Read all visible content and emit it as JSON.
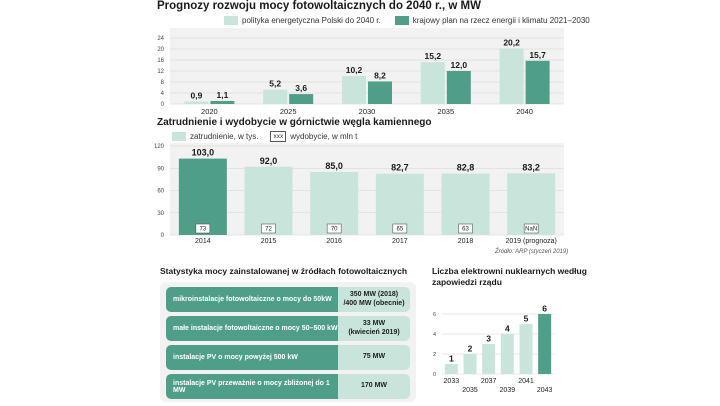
{
  "colors": {
    "light": "#c9e4da",
    "dark": "#4f9e8a",
    "panel": "#f2f2f2",
    "grid": "#d4d4d4"
  },
  "chart_data": [
    {
      "type": "bar",
      "title": "Prognozy rozwoju mocy fotowoltaicznych do 2040 r., w MW",
      "categories": [
        "2020",
        "2025",
        "2030",
        "2035",
        "2040"
      ],
      "series": [
        {
          "name": "polityka energetyczna Polski do 2040 r.",
          "values": [
            0.9,
            5.2,
            10.2,
            15.2,
            20.2
          ],
          "labels": [
            "0,9",
            "5,2",
            "10,2",
            "15,2",
            "20,2"
          ]
        },
        {
          "name": "krajowy plan na rzecz energii i klimatu 2021–2030",
          "values": [
            1.1,
            3.6,
            8.2,
            12.0,
            15.7
          ],
          "labels": [
            "1,1",
            "3,6",
            "8,2",
            "12,0",
            "15,7"
          ]
        }
      ],
      "yticks": [
        "0",
        "4",
        "8",
        "12",
        "16",
        "20",
        "24"
      ],
      "ylim": [
        0,
        24
      ],
      "grid": true
    },
    {
      "type": "bar",
      "title": "Zatrudnienie i wydobycie w górnictwie węgla kamiennego",
      "legend": {
        "employment": "zatrudnienie, w tys.",
        "box_sample": "xxx",
        "output": "wydobycie, w mln t"
      },
      "categories": [
        "2014",
        "2015",
        "2016",
        "2017",
        "2018",
        "2019 (prognoza)"
      ],
      "values": [
        103.0,
        92.0,
        85.0,
        82.7,
        82.8,
        83.2
      ],
      "value_labels": [
        "103,0",
        "92,0",
        "85,0",
        "82,7",
        "82,8",
        "83,2"
      ],
      "output_labels": [
        "73",
        "72",
        "70",
        "65",
        "63",
        "NaN"
      ],
      "yticks": [
        "0",
        "30",
        "60",
        "90",
        "120"
      ],
      "ylim": [
        0,
        120
      ],
      "highlight_index": 0,
      "source": "Źródło: ARP (styczeń 2019)"
    },
    {
      "type": "bar",
      "title": "Liczba elektrowni nuklearnych według zapowiedzi rządu",
      "categories": [
        "2033",
        "2035",
        "2037",
        "2039",
        "2041",
        "2043"
      ],
      "values": [
        1,
        2,
        3,
        4,
        5,
        6
      ],
      "yticks": [
        "0",
        "2",
        "4",
        "6"
      ],
      "ylim": [
        0,
        6
      ]
    }
  ],
  "stats_table": {
    "title": "Statystyka mocy zainstalowanej w źródłach fotowoltaicznych",
    "rows": [
      {
        "label": "mikroinstalacje fotowoltaiczne o mocy do 50kW",
        "value": "350 MW (2018)\n/400 MW (obecnie)"
      },
      {
        "label": "małe instalacje fotowoltaiczne o mocy 50–500 kW",
        "value": "33 MW\n(kwiecień 2019)"
      },
      {
        "label": "instalacje PV o mocy powyżej 500 kW",
        "value": "75 MW"
      },
      {
        "label": "instalacje PV przeważnie o mocy zbliżonej do 1 MW",
        "value": "170 MW"
      }
    ]
  }
}
